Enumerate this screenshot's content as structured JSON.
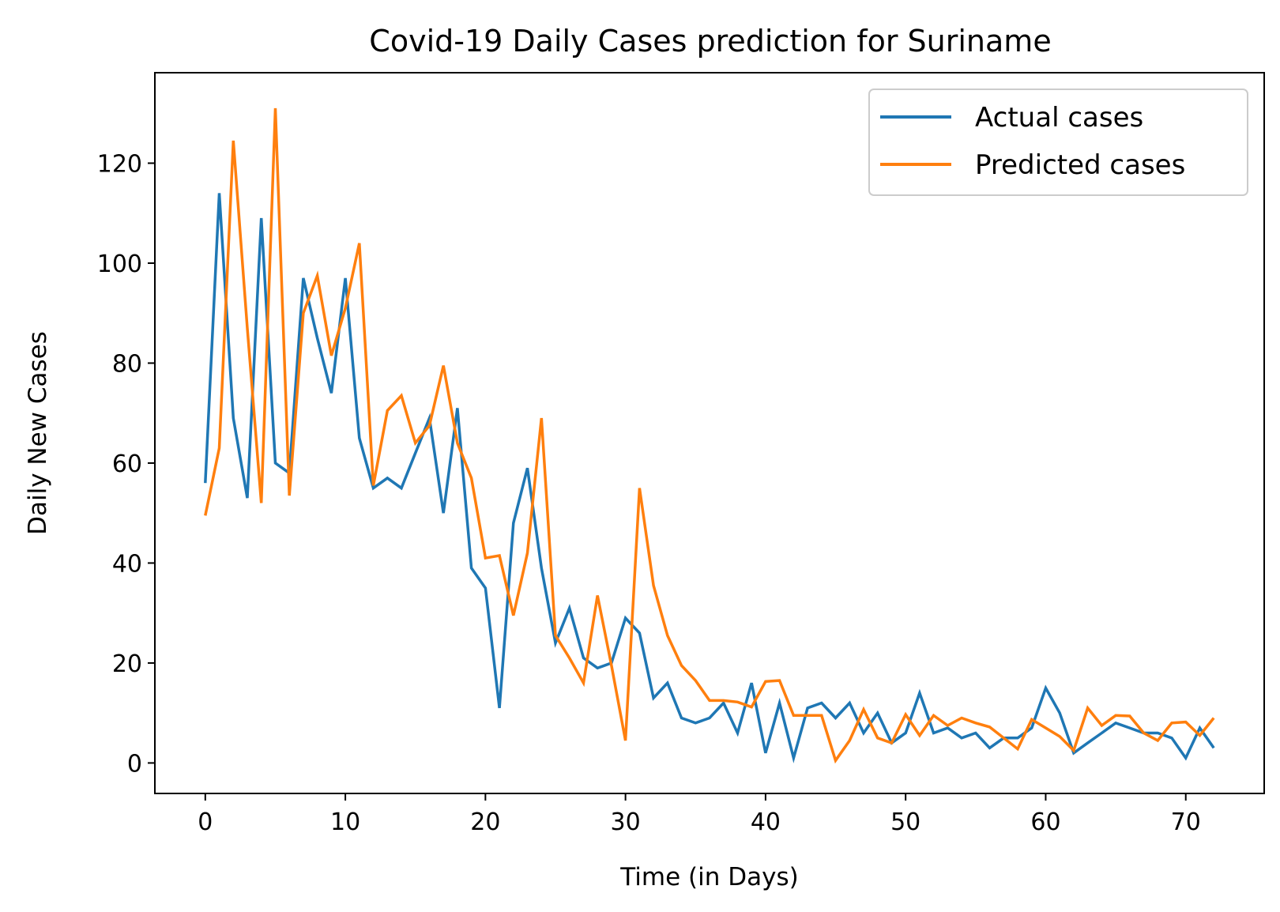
{
  "chart_data": {
    "type": "line",
    "title": "Covid-19 Daily Cases prediction for Suriname",
    "xlabel": "Time (in Days)",
    "ylabel": "Daily New Cases",
    "xlim": [
      -3.6,
      75.6
    ],
    "ylim": [
      -6.1,
      138.1
    ],
    "xticks": [
      0,
      10,
      20,
      30,
      40,
      50,
      60,
      70
    ],
    "yticks": [
      0,
      20,
      40,
      60,
      80,
      100,
      120
    ],
    "grid": false,
    "legend_position": "top-right",
    "series": [
      {
        "name": "Actual cases",
        "color": "#1f77b4",
        "x": [
          0,
          1,
          2,
          3,
          4,
          5,
          6,
          7,
          8,
          9,
          10,
          11,
          12,
          13,
          14,
          15,
          16,
          17,
          18,
          19,
          20,
          21,
          22,
          23,
          24,
          25,
          26,
          27,
          28,
          29,
          30,
          31,
          32,
          33,
          34,
          35,
          36,
          37,
          38,
          39,
          40,
          41,
          42,
          43,
          44,
          45,
          46,
          47,
          48,
          49,
          50,
          51,
          52,
          53,
          54,
          55,
          56,
          57,
          58,
          59,
          60,
          61,
          62,
          63,
          64,
          65,
          66,
          67,
          68,
          69,
          70,
          71,
          72
        ],
        "values": [
          56,
          114,
          69,
          53,
          109,
          60,
          58,
          97,
          85,
          74,
          97,
          65,
          55,
          57,
          55,
          62,
          69,
          50,
          71,
          39,
          35,
          11,
          48,
          59,
          39,
          24,
          31,
          21,
          19,
          20,
          29,
          26,
          13,
          16,
          9,
          8,
          9,
          12,
          6,
          16,
          2,
          12,
          1,
          11,
          12,
          9,
          12,
          6,
          10,
          4,
          6,
          14,
          6,
          7,
          5,
          6,
          3,
          5,
          5,
          7,
          15,
          10,
          2,
          4,
          6,
          8,
          7,
          6,
          6,
          5,
          1,
          7,
          3
        ]
      },
      {
        "name": "Predicted cases",
        "color": "#ff7f0e",
        "x": [
          0,
          1,
          2,
          3,
          4,
          5,
          6,
          7,
          8,
          9,
          10,
          11,
          12,
          13,
          14,
          15,
          16,
          17,
          18,
          19,
          20,
          21,
          22,
          23,
          24,
          25,
          26,
          27,
          28,
          29,
          30,
          31,
          32,
          33,
          34,
          35,
          36,
          37,
          38,
          39,
          40,
          41,
          42,
          43,
          44,
          45,
          46,
          47,
          48,
          49,
          50,
          51,
          52,
          53,
          54,
          55,
          56,
          57,
          58,
          59,
          60,
          61,
          62,
          63,
          64,
          65,
          66,
          67,
          68,
          69,
          70,
          71,
          72
        ],
        "values": [
          49.5,
          63,
          124.5,
          87,
          52,
          131,
          53.5,
          90,
          97.5,
          81.5,
          91,
          104,
          55.5,
          70.5,
          73.5,
          64,
          67.5,
          79.5,
          64,
          57,
          41,
          41.5,
          29.5,
          42,
          69,
          25.5,
          21,
          16,
          33.5,
          19.5,
          4.5,
          55,
          35.5,
          25.5,
          19.5,
          16.5,
          12.5,
          12.5,
          12.2,
          11.2,
          16.3,
          16.5,
          9.5,
          9.5,
          9.5,
          0.5,
          4.5,
          10.7,
          5,
          4,
          9.7,
          5.5,
          9.5,
          7.5,
          9,
          8,
          7.2,
          5,
          2.8,
          8.7,
          7,
          5.3,
          2.5,
          11,
          7.5,
          9.5,
          9.4,
          6,
          4.5,
          8,
          8.2,
          5.5,
          9
        ]
      }
    ]
  }
}
